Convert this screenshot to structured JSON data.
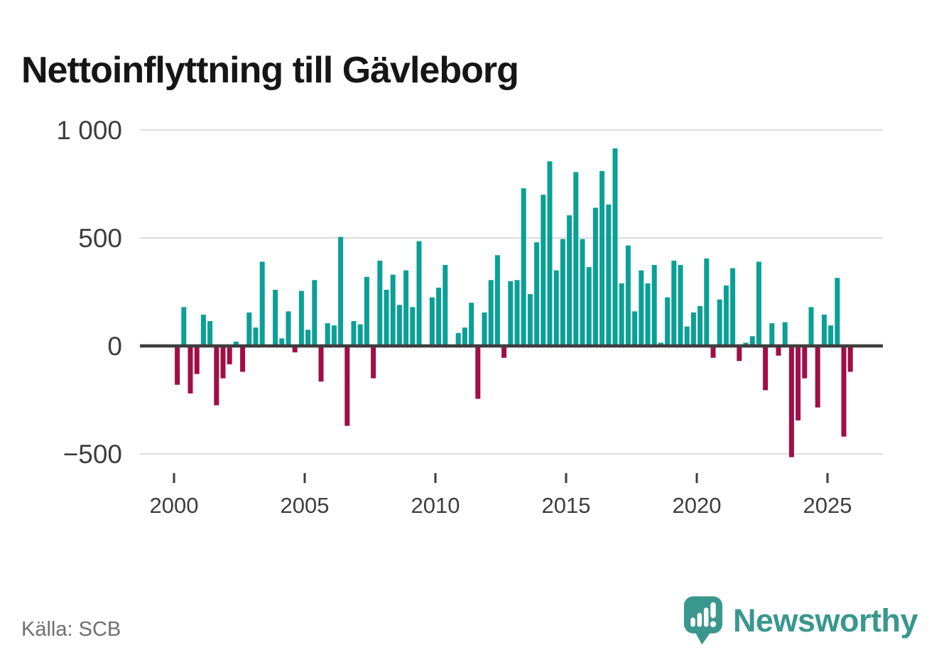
{
  "title": "Nettoinflyttning till Gävleborg",
  "source": "Källa: SCB",
  "branding": {
    "logo_text": "Newsworthy",
    "logo_icon": "speech-bubble-bar-chart-icon"
  },
  "colors": {
    "positive": "#0aa096",
    "negative": "#a10d45",
    "grid": "#dcdcdc",
    "axis": "#3d3d3d",
    "tick": "#3d3d3d",
    "title": "#161616",
    "source_text": "#6f6f6f",
    "brand_teal": "#39978e"
  },
  "chart_data": {
    "type": "bar",
    "title": "Nettoinflyttning till Gävleborg",
    "frequency": "quarterly",
    "x_start": "2000 Q1",
    "x_end": "2025 Q4",
    "x_tick_years": [
      2000,
      2005,
      2010,
      2015,
      2020,
      2025
    ],
    "x_tick_labels": [
      "2000",
      "2005",
      "2010",
      "2015",
      "2020",
      "2025"
    ],
    "y_ticks": [
      {
        "label": "1 000",
        "value": 1000
      },
      {
        "label": "500",
        "value": 500
      },
      {
        "label": "0",
        "value": 0
      },
      {
        "label": "−500",
        "value": -500
      }
    ],
    "ylim": [
      -560,
      1010
    ],
    "grid": true,
    "legend": false,
    "series": [
      {
        "name": "Nettoinflyttning",
        "values": [
          -180,
          180,
          -220,
          -130,
          145,
          115,
          -275,
          -150,
          -85,
          20,
          -120,
          155,
          85,
          390,
          0,
          260,
          35,
          160,
          -30,
          255,
          75,
          305,
          -165,
          105,
          95,
          505,
          -370,
          115,
          100,
          320,
          -150,
          395,
          260,
          330,
          190,
          350,
          180,
          485,
          0,
          225,
          270,
          375,
          0,
          60,
          85,
          200,
          -245,
          155,
          305,
          420,
          -55,
          300,
          305,
          730,
          240,
          480,
          700,
          855,
          350,
          495,
          605,
          805,
          495,
          365,
          640,
          810,
          655,
          915,
          290,
          465,
          160,
          350,
          290,
          375,
          15,
          225,
          395,
          375,
          90,
          155,
          185,
          405,
          -55,
          215,
          280,
          360,
          -70,
          15,
          45,
          390,
          -205,
          105,
          -45,
          110,
          -515,
          -345,
          -150,
          180,
          -285,
          145,
          95,
          315,
          -420,
          -120
        ]
      }
    ]
  }
}
